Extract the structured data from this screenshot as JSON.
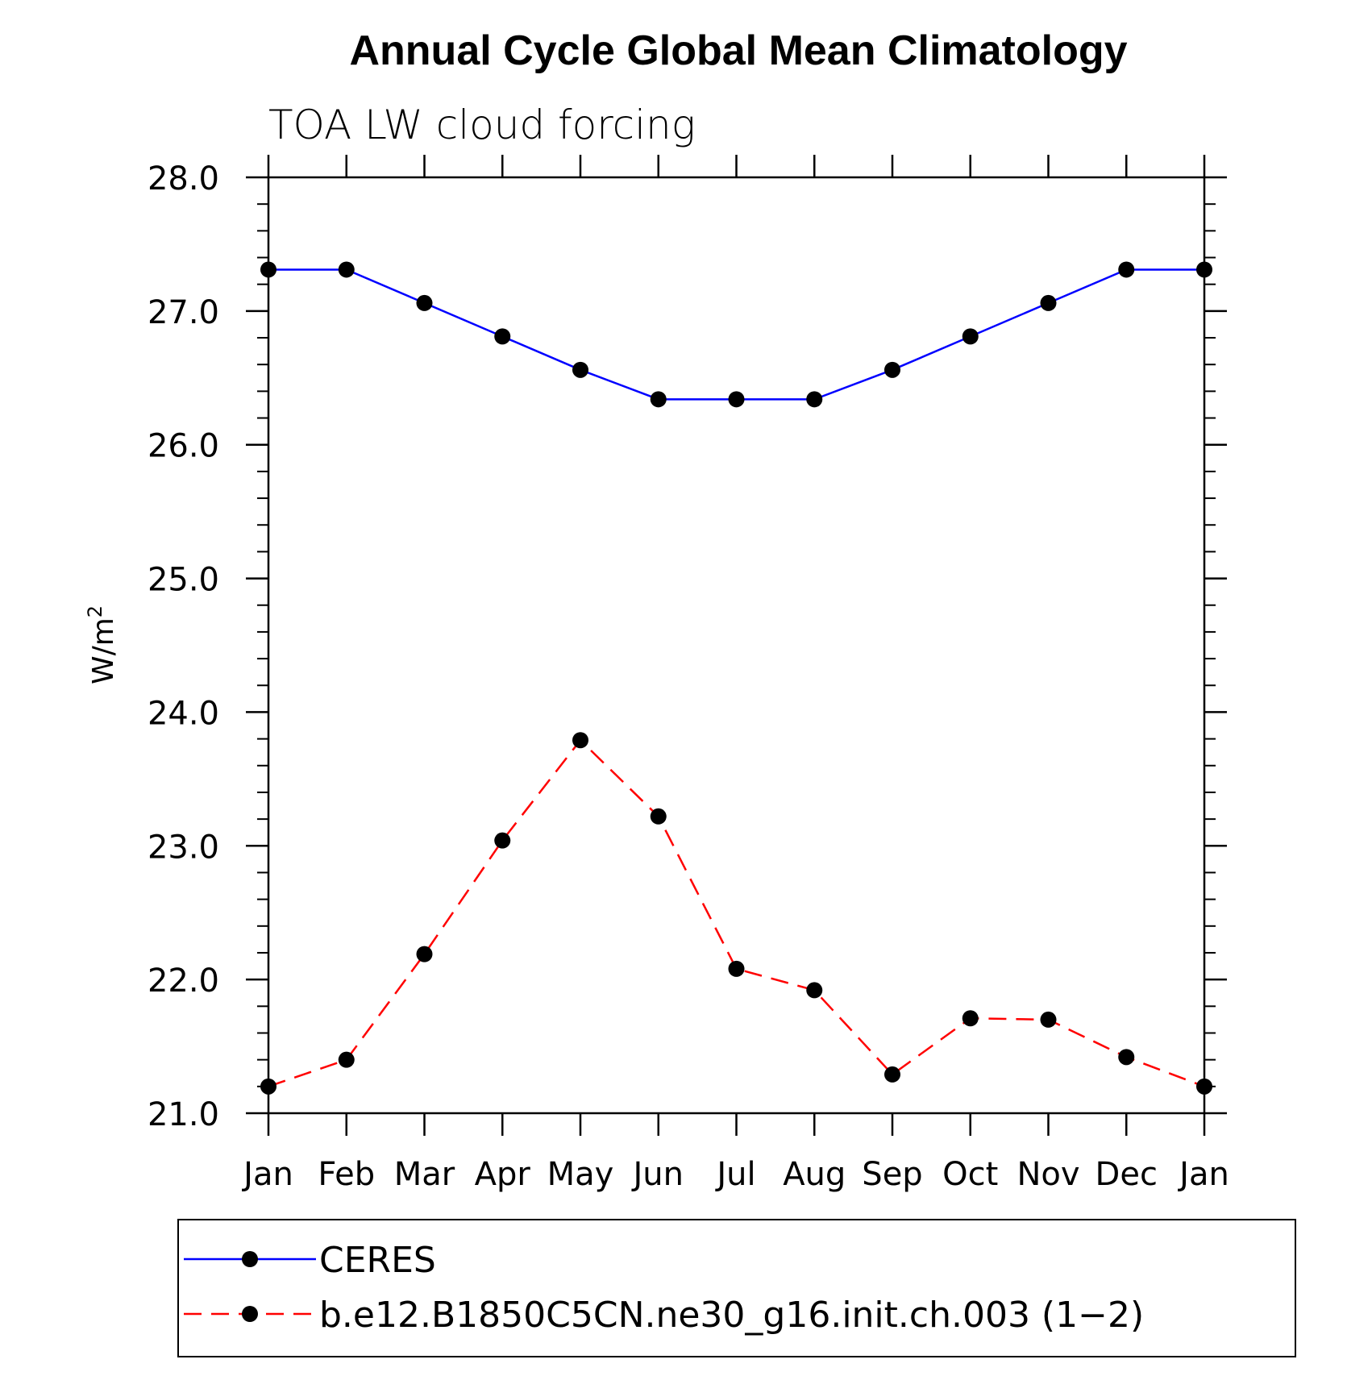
{
  "chart_data": {
    "type": "line",
    "title": "Annual Cycle Global Mean Climatology",
    "subtitle": "TOA LW cloud forcing",
    "xlabel": "",
    "ylabel": "W/m",
    "ylabel_superscript": "2",
    "categories": [
      "Jan",
      "Feb",
      "Mar",
      "Apr",
      "May",
      "Jun",
      "Jul",
      "Aug",
      "Sep",
      "Oct",
      "Nov",
      "Dec",
      "Jan"
    ],
    "ylim": [
      21.0,
      28.0
    ],
    "yticks": [
      "21.0",
      "22.0",
      "23.0",
      "24.0",
      "25.0",
      "26.0",
      "27.0",
      "28.0"
    ],
    "grid": false,
    "legend_position": "bottom",
    "series": [
      {
        "name": "CERES",
        "color": "#0000ff",
        "line_style": "solid",
        "marker": "filled-circle",
        "values": [
          27.31,
          27.31,
          27.06,
          26.81,
          26.56,
          26.34,
          26.34,
          26.34,
          26.56,
          26.81,
          27.06,
          27.31,
          27.31
        ]
      },
      {
        "name": "b.e12.B1850C5CN.ne30_g16.init.ch.003 (1−2)",
        "color": "#ff0000",
        "line_style": "dashed",
        "marker": "filled-circle",
        "values": [
          21.2,
          21.4,
          22.19,
          23.04,
          23.79,
          23.22,
          22.08,
          21.92,
          21.29,
          21.71,
          21.7,
          21.42,
          21.2
        ]
      }
    ]
  }
}
